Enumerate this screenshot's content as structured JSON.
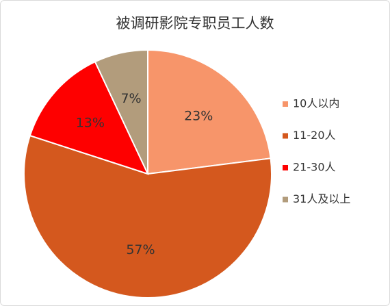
{
  "chart_data": {
    "type": "pie",
    "title": "被调研影院专职员工人数",
    "categories": [
      "10人以内",
      "11-20人",
      "21-30人",
      "31人及以上"
    ],
    "values": [
      23,
      57,
      13,
      7
    ],
    "value_labels": [
      "23%",
      "57%",
      "13%",
      "7%"
    ],
    "colors": [
      "#f7956a",
      "#d4581e",
      "#fe0000",
      "#b29c7c"
    ],
    "legend": "right"
  }
}
